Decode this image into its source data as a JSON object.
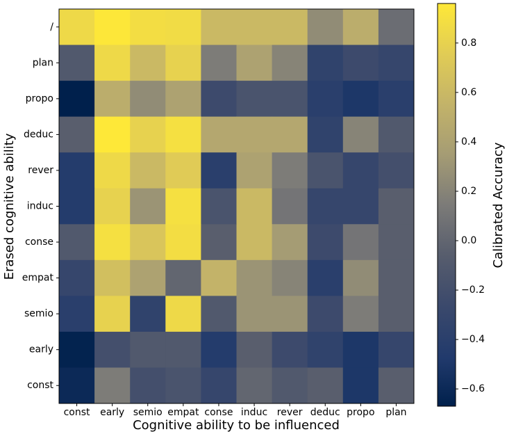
{
  "chart_data": {
    "type": "heatmap",
    "x_label": "Cognitive ability to be influenced",
    "y_label": "Erased cognitive ability",
    "colorbar_label": "Calibrated Accuracy",
    "colormap": "cividis",
    "x_categories": [
      "const",
      "early",
      "semio",
      "empat",
      "conse",
      "induc",
      "rever",
      "deduc",
      "propo",
      "plan"
    ],
    "y_categories": [
      "/",
      "plan",
      "propo",
      "deduc",
      "rever",
      "induc",
      "conse",
      "empat",
      "semio",
      "early",
      "const"
    ],
    "values": [
      [
        0.85,
        0.95,
        0.88,
        0.87,
        0.6,
        0.6,
        0.6,
        0.25,
        0.5,
        0.05
      ],
      [
        -0.1,
        0.85,
        0.6,
        0.8,
        0.15,
        0.4,
        0.2,
        -0.35,
        -0.25,
        -0.3
      ],
      [
        -0.67,
        0.5,
        0.25,
        0.4,
        -0.25,
        -0.15,
        -0.15,
        -0.4,
        -0.5,
        -0.4
      ],
      [
        -0.05,
        0.96,
        0.8,
        0.9,
        0.45,
        0.45,
        0.45,
        -0.35,
        0.2,
        -0.1
      ],
      [
        -0.45,
        0.85,
        0.6,
        0.75,
        -0.4,
        0.4,
        0.15,
        -0.15,
        -0.3,
        -0.2
      ],
      [
        -0.45,
        0.8,
        0.3,
        0.9,
        -0.15,
        0.6,
        0.1,
        -0.3,
        -0.3,
        -0.05
      ],
      [
        -0.1,
        0.9,
        0.7,
        0.88,
        -0.05,
        0.6,
        0.35,
        -0.25,
        0.1,
        -0.05
      ],
      [
        -0.3,
        0.65,
        0.4,
        0.0,
        0.55,
        0.3,
        0.2,
        -0.4,
        0.25,
        -0.05
      ],
      [
        -0.4,
        0.8,
        -0.35,
        0.85,
        -0.1,
        0.3,
        0.3,
        -0.25,
        0.15,
        -0.05
      ],
      [
        -0.65,
        -0.2,
        -0.1,
        -0.1,
        -0.45,
        -0.05,
        -0.25,
        -0.35,
        -0.5,
        -0.3
      ],
      [
        -0.6,
        0.15,
        -0.2,
        -0.15,
        -0.3,
        0.0,
        -0.1,
        -0.05,
        -0.5,
        -0.05
      ]
    ],
    "vlim": [
      -0.67,
      0.96
    ],
    "colorbar_ticks": [
      {
        "value": -0.6,
        "label": "−0.6"
      },
      {
        "value": -0.4,
        "label": "−0.4"
      },
      {
        "value": -0.2,
        "label": "−0.2"
      },
      {
        "value": 0.0,
        "label": "0.0"
      },
      {
        "value": 0.2,
        "label": "0.2"
      },
      {
        "value": 0.4,
        "label": "0.4"
      },
      {
        "value": 0.6,
        "label": "0.6"
      },
      {
        "value": 0.8,
        "label": "0.8"
      }
    ]
  }
}
